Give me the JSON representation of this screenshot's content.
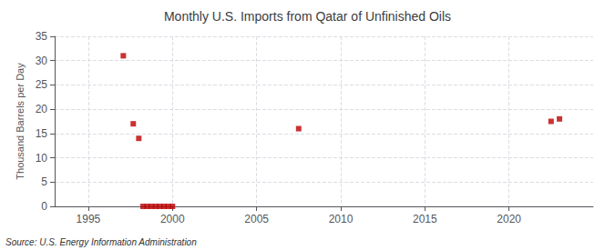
{
  "chart_data": {
    "type": "scatter",
    "title": "Monthly U.S. Imports from Qatar of Unfinished Oils",
    "ylabel": "Thousand Barrels per Day",
    "annotations": [
      "Source: U.S. Energy Information Administration"
    ],
    "x": [
      1997.08,
      1997.67,
      1998.0,
      1998.25,
      1998.5,
      1998.75,
      1999.0,
      1999.25,
      1999.5,
      1999.75,
      2000.0,
      2007.5,
      2022.5,
      2023.0
    ],
    "values": [
      31.0,
      17.0,
      14.0,
      0.0,
      0.0,
      0.0,
      0.0,
      0.0,
      0.0,
      0.0,
      0.0,
      16.0,
      17.5,
      18.0
    ],
    "color": "#bb0000",
    "marker": "square",
    "xlim": [
      1993,
      2025
    ],
    "xticks": [
      1995,
      2000,
      2005,
      2010,
      2015,
      2020
    ],
    "ylim": [
      0,
      35
    ],
    "yticks": [
      0,
      5,
      10,
      15,
      20,
      25,
      30,
      35
    ],
    "grid": true
  }
}
